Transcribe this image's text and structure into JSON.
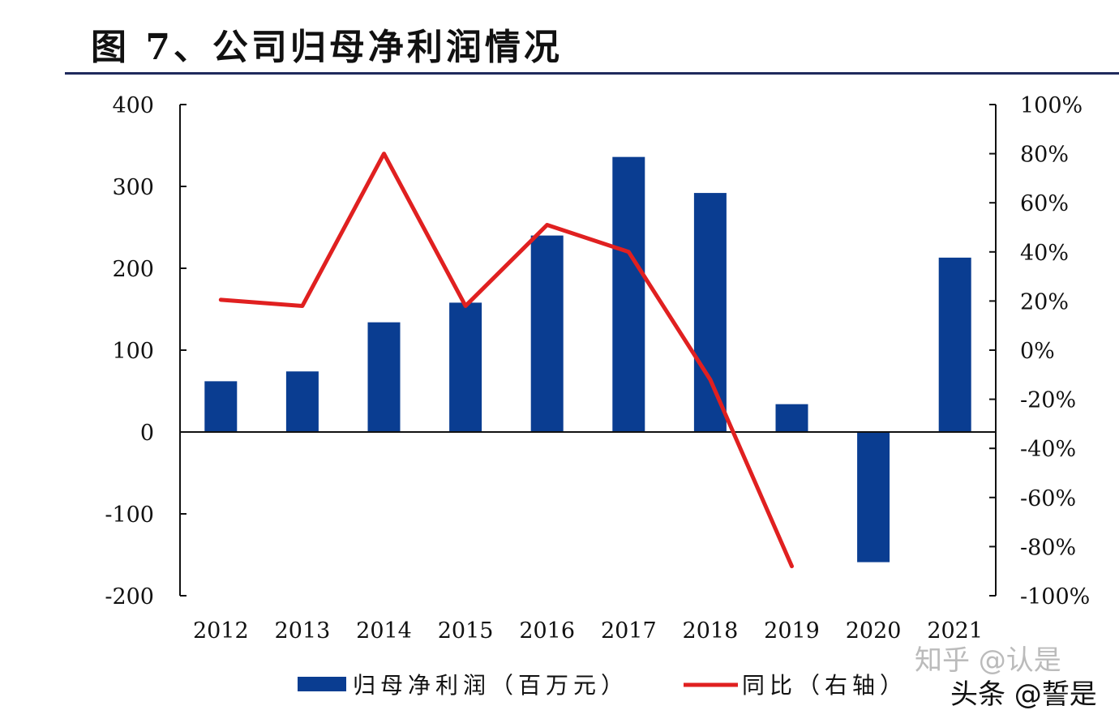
{
  "chart_data": {
    "type": "bar+line",
    "title": "图 7、公司归母净利润情况",
    "categories": [
      "2012",
      "2013",
      "2014",
      "2015",
      "2016",
      "2017",
      "2018",
      "2019",
      "2020",
      "2021"
    ],
    "series": [
      {
        "name": "归母净利润（百万元）",
        "type": "bar",
        "axis": "left",
        "color": "#0a3d91",
        "values": [
          62,
          74,
          134,
          158,
          240,
          336,
          292,
          34,
          -159,
          213
        ]
      },
      {
        "name": "同比（右轴）",
        "type": "line",
        "axis": "right",
        "color": "#e02020",
        "values": [
          20.5,
          18,
          80,
          18,
          51,
          40,
          -12,
          -88,
          null,
          null
        ]
      }
    ],
    "y_left": {
      "range": [
        -200,
        400
      ],
      "ticks": [
        "400",
        "300",
        "200",
        "100",
        "0",
        "-100",
        "-200"
      ]
    },
    "y_right": {
      "range": [
        -100,
        100
      ],
      "ticks": [
        "100%",
        "80%",
        "60%",
        "40%",
        "20%",
        "0%",
        "-20%",
        "-40%",
        "-60%",
        "-80%",
        "-100%"
      ]
    },
    "grid": false,
    "legend": "bottom"
  },
  "watermark": {
    "back": "知乎 @认是",
    "front": "头条 @誓是"
  }
}
